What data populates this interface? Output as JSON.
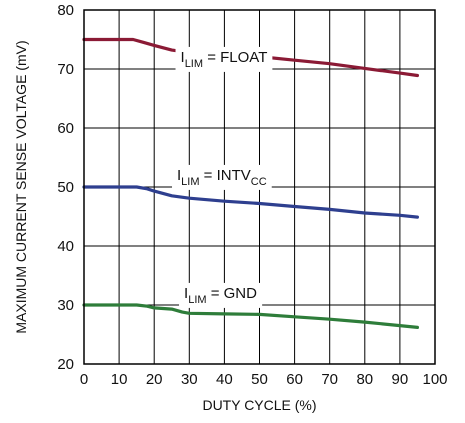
{
  "chart_data": {
    "type": "line",
    "title": "",
    "xlabel": "DUTY CYCLE (%)",
    "ylabel": "MAXIMUM CURRENT SENSE VOLTAGE (mV)",
    "xlim": [
      0,
      100
    ],
    "ylim": [
      20,
      80
    ],
    "x_ticks": [
      "0",
      "10",
      "20",
      "30",
      "40",
      "50",
      "60",
      "70",
      "80",
      "90",
      "100"
    ],
    "y_ticks": [
      "20",
      "30",
      "40",
      "50",
      "60",
      "70",
      "80"
    ],
    "grid": true,
    "colors": {
      "float": "#8b1a35",
      "intvcc": "#2e3f8f",
      "gnd": "#2e7d3a",
      "grid": "#000000",
      "label_bg": "#ffffff"
    },
    "series": [
      {
        "key": "float",
        "x": [
          0,
          5,
          10,
          14,
          17,
          20,
          25,
          30,
          40,
          50,
          60,
          70,
          80,
          90,
          95
        ],
        "y": [
          75,
          75,
          75,
          75,
          74.5,
          74,
          73.2,
          72.8,
          72.5,
          72.1,
          71.5,
          70.9,
          70.1,
          69.3,
          68.9
        ]
      },
      {
        "key": "intvcc",
        "x": [
          0,
          5,
          10,
          15,
          18,
          20,
          25,
          30,
          40,
          50,
          60,
          70,
          80,
          90,
          95
        ],
        "y": [
          50,
          50,
          50,
          50,
          49.7,
          49.3,
          48.5,
          48.1,
          47.6,
          47.2,
          46.7,
          46.2,
          45.6,
          45.2,
          44.9
        ]
      },
      {
        "key": "gnd",
        "x": [
          0,
          5,
          10,
          15,
          18,
          20,
          25,
          28,
          30,
          40,
          50,
          60,
          70,
          80,
          90,
          95
        ],
        "y": [
          30,
          30,
          30,
          30,
          29.8,
          29.5,
          29.3,
          28.8,
          28.6,
          28.5,
          28.4,
          28.0,
          27.6,
          27.1,
          26.5,
          26.2
        ]
      }
    ],
    "annotations": [
      {
        "key": "float",
        "main": "I",
        "sub": "LIM",
        "rest": " = FLOAT",
        "x": 27.5,
        "y": 71.2
      },
      {
        "key": "intvcc",
        "main": "I",
        "sub": "LIM",
        "rest": " = INTV",
        "sub2": "CC",
        "x": 26.5,
        "y": 51.2
      },
      {
        "key": "gnd",
        "main": "I",
        "sub": "LIM",
        "rest": " = GND",
        "x": 28.5,
        "y": 31.2
      }
    ]
  }
}
